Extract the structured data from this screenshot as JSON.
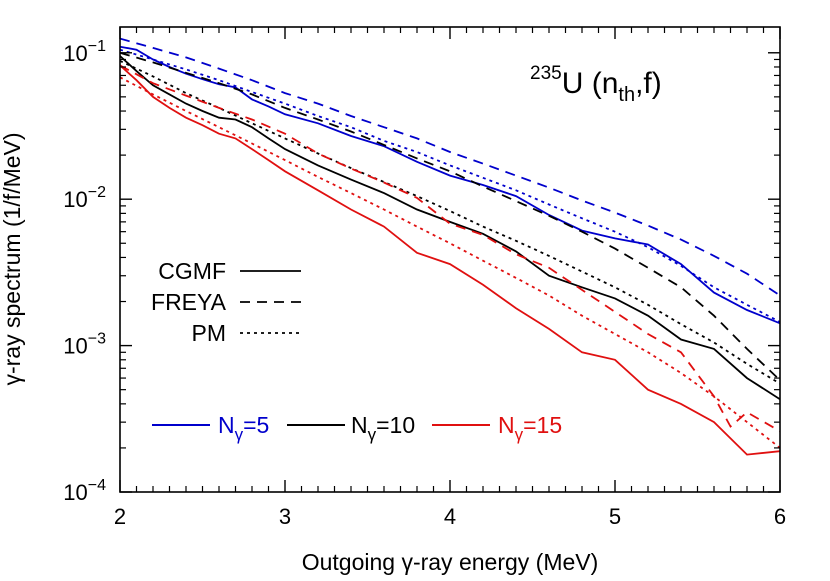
{
  "chart_data": {
    "type": "line",
    "annotation": {
      "mass": "235",
      "element": "U",
      "open": " (n",
      "sub": "th",
      "close": ",f)"
    },
    "xlabel": "Outgoing γ-ray energy (MeV)",
    "ylabel": "γ-ray spectrum (1/f/MeV)",
    "xlim": [
      2,
      6
    ],
    "ylim": [
      0.0001,
      0.15
    ],
    "yscale": "log",
    "xticks": [
      "2",
      "3",
      "4",
      "5",
      "6"
    ],
    "yticks": [
      {
        "value": 0.1,
        "base": "10",
        "exp": "−1"
      },
      {
        "value": 0.01,
        "base": "10",
        "exp": "−2"
      },
      {
        "value": 0.001,
        "base": "10",
        "exp": "−3"
      },
      {
        "value": 0.0001,
        "base": "10",
        "exp": "−4"
      }
    ],
    "grid": false,
    "style_legend": [
      {
        "name": "CGMF",
        "dash": "solid"
      },
      {
        "name": "FREYA",
        "dash": "dashed"
      },
      {
        "name": "PM",
        "dash": "dotted"
      }
    ],
    "color_legend": [
      {
        "pre": "N",
        "sub": "γ",
        "post": "=5",
        "color": "#0000cc",
        "text_color": "#0000cc"
      },
      {
        "pre": "N",
        "sub": "γ",
        "post": "=10",
        "color": "#000000",
        "text_color": "#000000"
      },
      {
        "pre": "N",
        "sub": "γ",
        "post": "=15",
        "color": "#e01010",
        "text_color": "#e01010"
      }
    ],
    "series": [
      {
        "group": "Nγ=5",
        "model": "CGMF",
        "color": "#0000cc",
        "dash": "solid",
        "x": [
          2.0,
          2.1,
          2.2,
          2.3,
          2.4,
          2.5,
          2.6,
          2.7,
          2.8,
          2.9,
          3.0,
          3.2,
          3.4,
          3.6,
          3.8,
          4.0,
          4.2,
          4.4,
          4.6,
          4.8,
          5.0,
          5.2,
          5.4,
          5.6,
          5.8,
          6.0
        ],
        "y": [
          0.11,
          0.105,
          0.09,
          0.08,
          0.072,
          0.066,
          0.061,
          0.058,
          0.048,
          0.043,
          0.038,
          0.033,
          0.027,
          0.023,
          0.018,
          0.0145,
          0.0125,
          0.0105,
          0.0078,
          0.0061,
          0.0054,
          0.0049,
          0.0036,
          0.0023,
          0.00175,
          0.00142
        ]
      },
      {
        "group": "Nγ=5",
        "model": "FREYA",
        "color": "#0000cc",
        "dash": "dashed",
        "x": [
          2.0,
          2.2,
          2.4,
          2.6,
          2.8,
          3.0,
          3.2,
          3.4,
          3.6,
          3.8,
          4.0,
          4.2,
          4.4,
          4.6,
          4.8,
          5.0,
          5.2,
          5.4,
          5.6,
          5.8,
          6.0
        ],
        "y": [
          0.125,
          0.108,
          0.093,
          0.078,
          0.065,
          0.053,
          0.045,
          0.037,
          0.031,
          0.026,
          0.021,
          0.0175,
          0.0145,
          0.012,
          0.0098,
          0.0081,
          0.0066,
          0.0053,
          0.0041,
          0.0031,
          0.0022
        ]
      },
      {
        "group": "Nγ=5",
        "model": "PM",
        "color": "#0000cc",
        "dash": "dotted",
        "x": [
          2.0,
          2.2,
          2.4,
          2.6,
          2.8,
          3.0,
          3.2,
          3.4,
          3.6,
          3.8,
          4.0,
          4.2,
          4.4,
          4.6,
          4.8,
          5.0,
          5.2,
          5.4,
          5.6,
          5.8,
          6.0
        ],
        "y": [
          0.105,
          0.09,
          0.077,
          0.065,
          0.054,
          0.045,
          0.037,
          0.031,
          0.025,
          0.021,
          0.017,
          0.014,
          0.0115,
          0.0092,
          0.0074,
          0.006,
          0.0047,
          0.0035,
          0.0025,
          0.0019,
          0.00145
        ]
      },
      {
        "group": "Nγ=10",
        "model": "CGMF",
        "color": "#000000",
        "dash": "solid",
        "x": [
          2.0,
          2.1,
          2.2,
          2.3,
          2.4,
          2.5,
          2.6,
          2.7,
          2.8,
          2.9,
          3.0,
          3.2,
          3.4,
          3.6,
          3.8,
          4.0,
          4.2,
          4.4,
          4.6,
          4.8,
          5.0,
          5.2,
          5.4,
          5.6,
          5.8,
          6.0
        ],
        "y": [
          0.095,
          0.075,
          0.06,
          0.052,
          0.045,
          0.04,
          0.036,
          0.035,
          0.031,
          0.026,
          0.022,
          0.017,
          0.0136,
          0.011,
          0.0085,
          0.007,
          0.0058,
          0.0044,
          0.003,
          0.0025,
          0.0021,
          0.0016,
          0.0011,
          0.00095,
          0.0006,
          0.00043
        ]
      },
      {
        "group": "Nγ=10",
        "model": "FREYA",
        "color": "#000000",
        "dash": "dashed",
        "x": [
          2.0,
          2.2,
          2.4,
          2.6,
          2.8,
          3.0,
          3.2,
          3.4,
          3.6,
          3.8,
          4.0,
          4.2,
          4.4,
          4.6,
          4.8,
          5.0,
          5.2,
          5.4,
          5.6,
          5.8,
          6.0
        ],
        "y": [
          0.1,
          0.086,
          0.073,
          0.062,
          0.052,
          0.042,
          0.035,
          0.029,
          0.0235,
          0.019,
          0.0155,
          0.0122,
          0.0097,
          0.0077,
          0.006,
          0.0046,
          0.0034,
          0.0025,
          0.0016,
          0.00095,
          0.00058
        ]
      },
      {
        "group": "Nγ=10",
        "model": "PM",
        "color": "#000000",
        "dash": "dotted",
        "x": [
          2.0,
          2.2,
          2.4,
          2.6,
          2.8,
          3.0,
          3.2,
          3.4,
          3.6,
          3.8,
          4.0,
          4.2,
          4.4,
          4.6,
          4.8,
          5.0,
          5.2,
          5.4,
          5.6,
          5.8,
          6.0
        ],
        "y": [
          0.088,
          0.069,
          0.053,
          0.042,
          0.033,
          0.026,
          0.0205,
          0.0163,
          0.0131,
          0.0105,
          0.0083,
          0.0065,
          0.0052,
          0.0041,
          0.0032,
          0.0025,
          0.0019,
          0.0014,
          0.00105,
          0.00075,
          0.00055
        ]
      },
      {
        "group": "Nγ=15",
        "model": "CGMF",
        "color": "#e01010",
        "dash": "solid",
        "x": [
          2.0,
          2.1,
          2.2,
          2.3,
          2.4,
          2.5,
          2.6,
          2.7,
          2.8,
          2.9,
          3.0,
          3.2,
          3.4,
          3.6,
          3.8,
          4.0,
          4.2,
          4.4,
          4.6,
          4.8,
          5.0,
          5.2,
          5.4,
          5.6,
          5.8,
          6.0
        ],
        "y": [
          0.082,
          0.065,
          0.05,
          0.042,
          0.036,
          0.032,
          0.028,
          0.026,
          0.022,
          0.0185,
          0.0155,
          0.0115,
          0.0085,
          0.0065,
          0.0043,
          0.0036,
          0.0026,
          0.0018,
          0.0013,
          0.0009,
          0.0008,
          0.0005,
          0.0004,
          0.0003,
          0.00018,
          0.00019
        ]
      },
      {
        "group": "Nγ=15",
        "model": "FREYA",
        "color": "#e01010",
        "dash": "dashed",
        "x": [
          2.0,
          2.2,
          2.4,
          2.6,
          2.8,
          3.0,
          3.2,
          3.4,
          3.6,
          3.8,
          4.0,
          4.2,
          4.4,
          4.6,
          4.8,
          5.0,
          5.2,
          5.4,
          5.6,
          5.7,
          5.8,
          6.0
        ],
        "y": [
          0.082,
          0.062,
          0.051,
          0.042,
          0.035,
          0.028,
          0.0205,
          0.0162,
          0.013,
          0.0102,
          0.0068,
          0.0057,
          0.0042,
          0.0034,
          0.0024,
          0.0017,
          0.0012,
          0.0009,
          0.00045,
          0.00028,
          0.00035,
          0.00026
        ]
      },
      {
        "group": "Nγ=15",
        "model": "PM",
        "color": "#e01010",
        "dash": "dotted",
        "x": [
          2.0,
          2.2,
          2.4,
          2.6,
          2.8,
          3.0,
          3.2,
          3.4,
          3.6,
          3.8,
          4.0,
          4.2,
          4.4,
          4.6,
          4.8,
          5.0,
          5.2,
          5.4,
          5.6,
          5.8,
          6.0
        ],
        "y": [
          0.068,
          0.052,
          0.04,
          0.031,
          0.024,
          0.0185,
          0.0142,
          0.011,
          0.0085,
          0.0065,
          0.005,
          0.0038,
          0.0029,
          0.0022,
          0.0016,
          0.0012,
          0.0009,
          0.00065,
          0.00045,
          0.0003,
          0.0002
        ]
      }
    ]
  }
}
